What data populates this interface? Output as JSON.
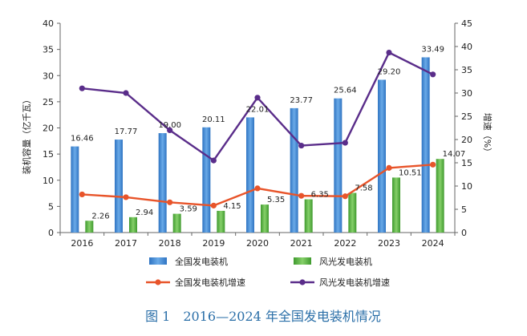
{
  "chart_data": {
    "type": "bar",
    "categories": [
      "2016",
      "2017",
      "2018",
      "2019",
      "2020",
      "2021",
      "2022",
      "2023",
      "2024"
    ],
    "series": [
      {
        "name": "全国发电装机",
        "kind": "bar",
        "axis": "left",
        "color": "#4a8fd6",
        "values": [
          16.46,
          17.77,
          19.0,
          20.11,
          22.01,
          23.77,
          25.64,
          29.2,
          33.49
        ],
        "labels": [
          "16.46",
          "17.77",
          "19.00",
          "20.11",
          "22.01",
          "23.77",
          "25.64",
          "29.20",
          "33.49"
        ]
      },
      {
        "name": "风光发电装机",
        "kind": "bar",
        "axis": "left",
        "color": "#5db545",
        "values": [
          2.26,
          2.94,
          3.59,
          4.15,
          5.35,
          6.35,
          7.58,
          10.51,
          14.07
        ],
        "labels": [
          "2.26",
          "2.94",
          "3.59",
          "4.15",
          "5.35",
          "6.35",
          "7.58",
          "10.51",
          "14.07"
        ]
      },
      {
        "name": "全国发电装机增速",
        "kind": "line",
        "axis": "right",
        "color": "#e8542a",
        "values": [
          8.2,
          7.6,
          6.5,
          5.8,
          9.5,
          7.9,
          7.8,
          13.9,
          14.6
        ]
      },
      {
        "name": "风光发电装机增速",
        "kind": "line",
        "axis": "right",
        "color": "#5a2d8a",
        "values": [
          31.0,
          30.0,
          22.0,
          15.5,
          29.0,
          18.7,
          19.3,
          38.7,
          34.0
        ]
      }
    ],
    "ylabel": "装机容量（亿千瓦）",
    "y2label": "增速（%）",
    "ylim": [
      0,
      40
    ],
    "y2lim": [
      0,
      45
    ],
    "yticks": [
      "0",
      "5",
      "10",
      "15",
      "20",
      "25",
      "30",
      "35",
      "40"
    ],
    "y2ticks": [
      "0",
      "5",
      "10",
      "15",
      "20",
      "25",
      "30",
      "35",
      "40",
      "45"
    ],
    "legend": "bottom",
    "grid": false
  },
  "caption": "图 1　2016—2024 年全国发电装机情况"
}
